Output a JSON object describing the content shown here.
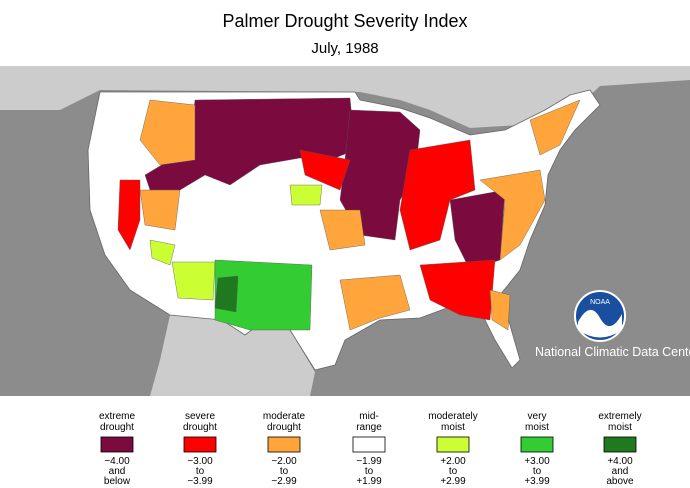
{
  "header": {
    "title": "Palmer Drought Severity Index",
    "subtitle": "July, 1988"
  },
  "credit": {
    "logo": "NOAA",
    "text": "National Climatic Data Center"
  },
  "legend": {
    "items": [
      {
        "label": [
          "extreme",
          "drought"
        ],
        "range": [
          "−4.00",
          "and",
          "below"
        ],
        "color": "#7b0b3e"
      },
      {
        "label": [
          "severe",
          "drought"
        ],
        "range": [
          "−3.00",
          "to",
          "−3.99"
        ],
        "color": "#ff0000"
      },
      {
        "label": [
          "moderate",
          "drought"
        ],
        "range": [
          "−2.00",
          "to",
          "−2.99"
        ],
        "color": "#ffa53c"
      },
      {
        "label": [
          "mid-",
          "range"
        ],
        "range": [
          "−1.99",
          "to",
          "+1.99"
        ],
        "color": "#ffffff"
      },
      {
        "label": [
          "moderately",
          "moist"
        ],
        "range": [
          "+2.00",
          "to",
          "+2.99"
        ],
        "color": "#ccff33"
      },
      {
        "label": [
          "very",
          "moist"
        ],
        "range": [
          "+3.00",
          "to",
          "+3.99"
        ],
        "color": "#33cc33"
      },
      {
        "label": [
          "extremely",
          "moist"
        ],
        "range": [
          "+4.00",
          "and",
          "above"
        ],
        "color": "#1f7a1f"
      }
    ]
  }
}
